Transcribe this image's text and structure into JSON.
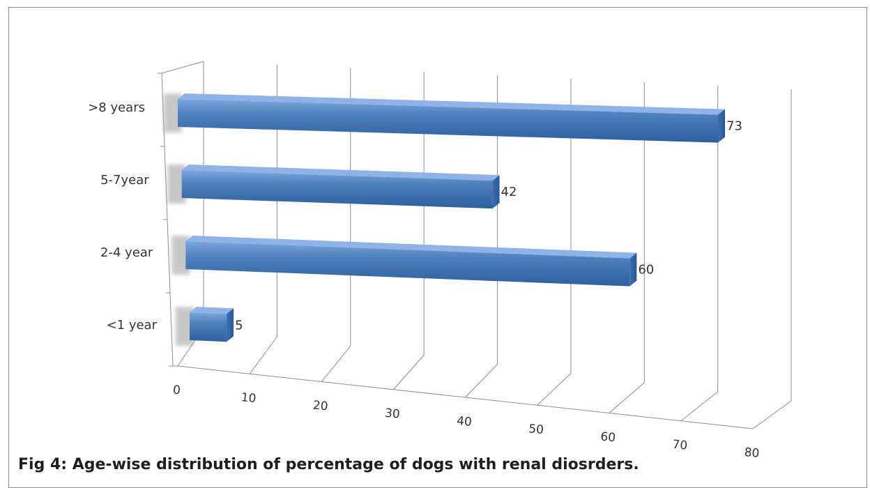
{
  "figure": {
    "caption": "Fig 4: Age-wise distribution of percentage of dogs with renal diosrders."
  },
  "chart_data": {
    "type": "bar",
    "orientation": "horizontal",
    "style": "3d-cylinder",
    "title": "",
    "xlabel": "",
    "ylabel": "",
    "categories": [
      "<1 year",
      "2-4 year",
      "5-7year",
      ">8 years"
    ],
    "series": [
      {
        "values": [
          5,
          60,
          42,
          73
        ]
      }
    ],
    "data_labels": [
      "5",
      "60",
      "42",
      "73"
    ],
    "xlim": [
      0,
      80
    ],
    "x_ticks": [
      "0",
      "10",
      "20",
      "30",
      "40",
      "50",
      "60",
      "70",
      "80"
    ],
    "grid": true,
    "legend": "none",
    "colors": {
      "bar": "#4F81BD",
      "bar_dark": "#2E5E9E",
      "bar_light": "#7FA6DE",
      "grid": "#8c8c8c",
      "text": "#333333"
    }
  }
}
